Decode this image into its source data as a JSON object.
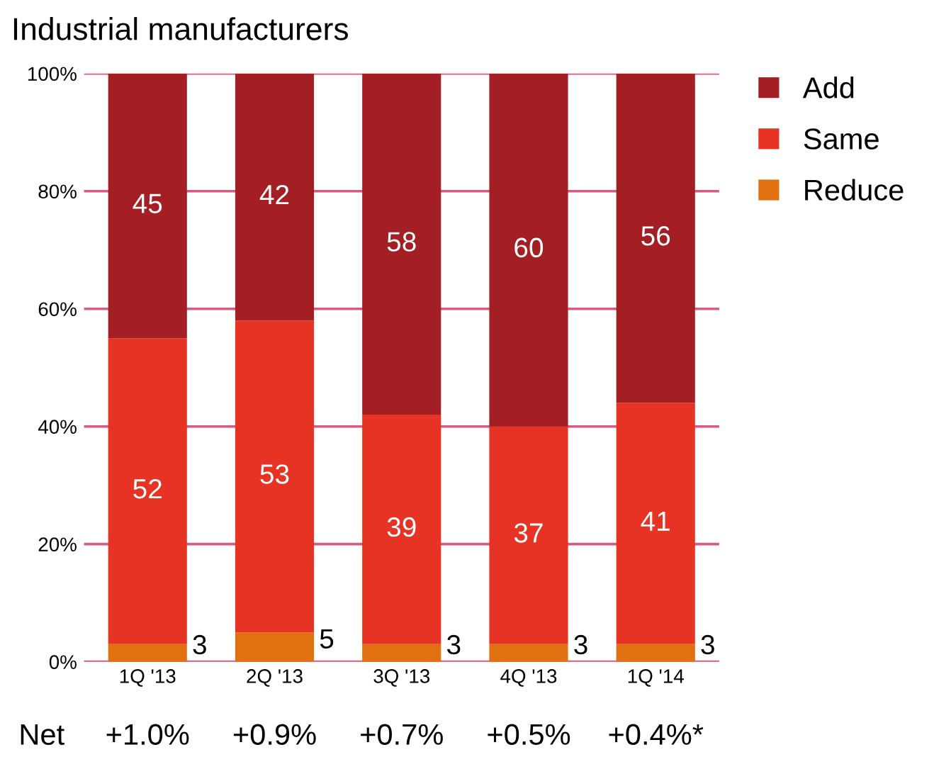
{
  "chart_data": {
    "type": "bar",
    "title": "Industrial manufacturers",
    "categories": [
      "1Q '13",
      "2Q '13",
      "3Q '13",
      "4Q '13",
      "1Q '14"
    ],
    "stacked": true,
    "series": [
      {
        "name": "Reduce",
        "color": "#e07010",
        "values": [
          3,
          5,
          3,
          3,
          3
        ],
        "value_labels": [
          "3",
          "5",
          "3",
          "3",
          "3"
        ]
      },
      {
        "name": "Same",
        "color": "#e63323",
        "values": [
          52,
          53,
          39,
          37,
          41
        ],
        "value_labels": [
          "52",
          "53",
          "39",
          "37",
          "41"
        ]
      },
      {
        "name": "Add",
        "color": "#a31f23",
        "values": [
          45,
          42,
          58,
          60,
          56
        ],
        "value_labels": [
          "45",
          "42",
          "58",
          "60",
          "56"
        ]
      }
    ],
    "ylim": [
      0,
      100
    ],
    "yticks": [
      {
        "value": 0,
        "label": "0%"
      },
      {
        "value": 20,
        "label": "20%"
      },
      {
        "value": 40,
        "label": "40%"
      },
      {
        "value": 60,
        "label": "60%"
      },
      {
        "value": 80,
        "label": "80%"
      },
      {
        "value": 100,
        "label": "100%"
      }
    ],
    "grid": "y",
    "legend": "top right",
    "annotations": [
      "Net",
      "+1.0%",
      "+0.9%",
      "+0.7%",
      "+0.5%",
      "+0.4%*"
    ]
  }
}
